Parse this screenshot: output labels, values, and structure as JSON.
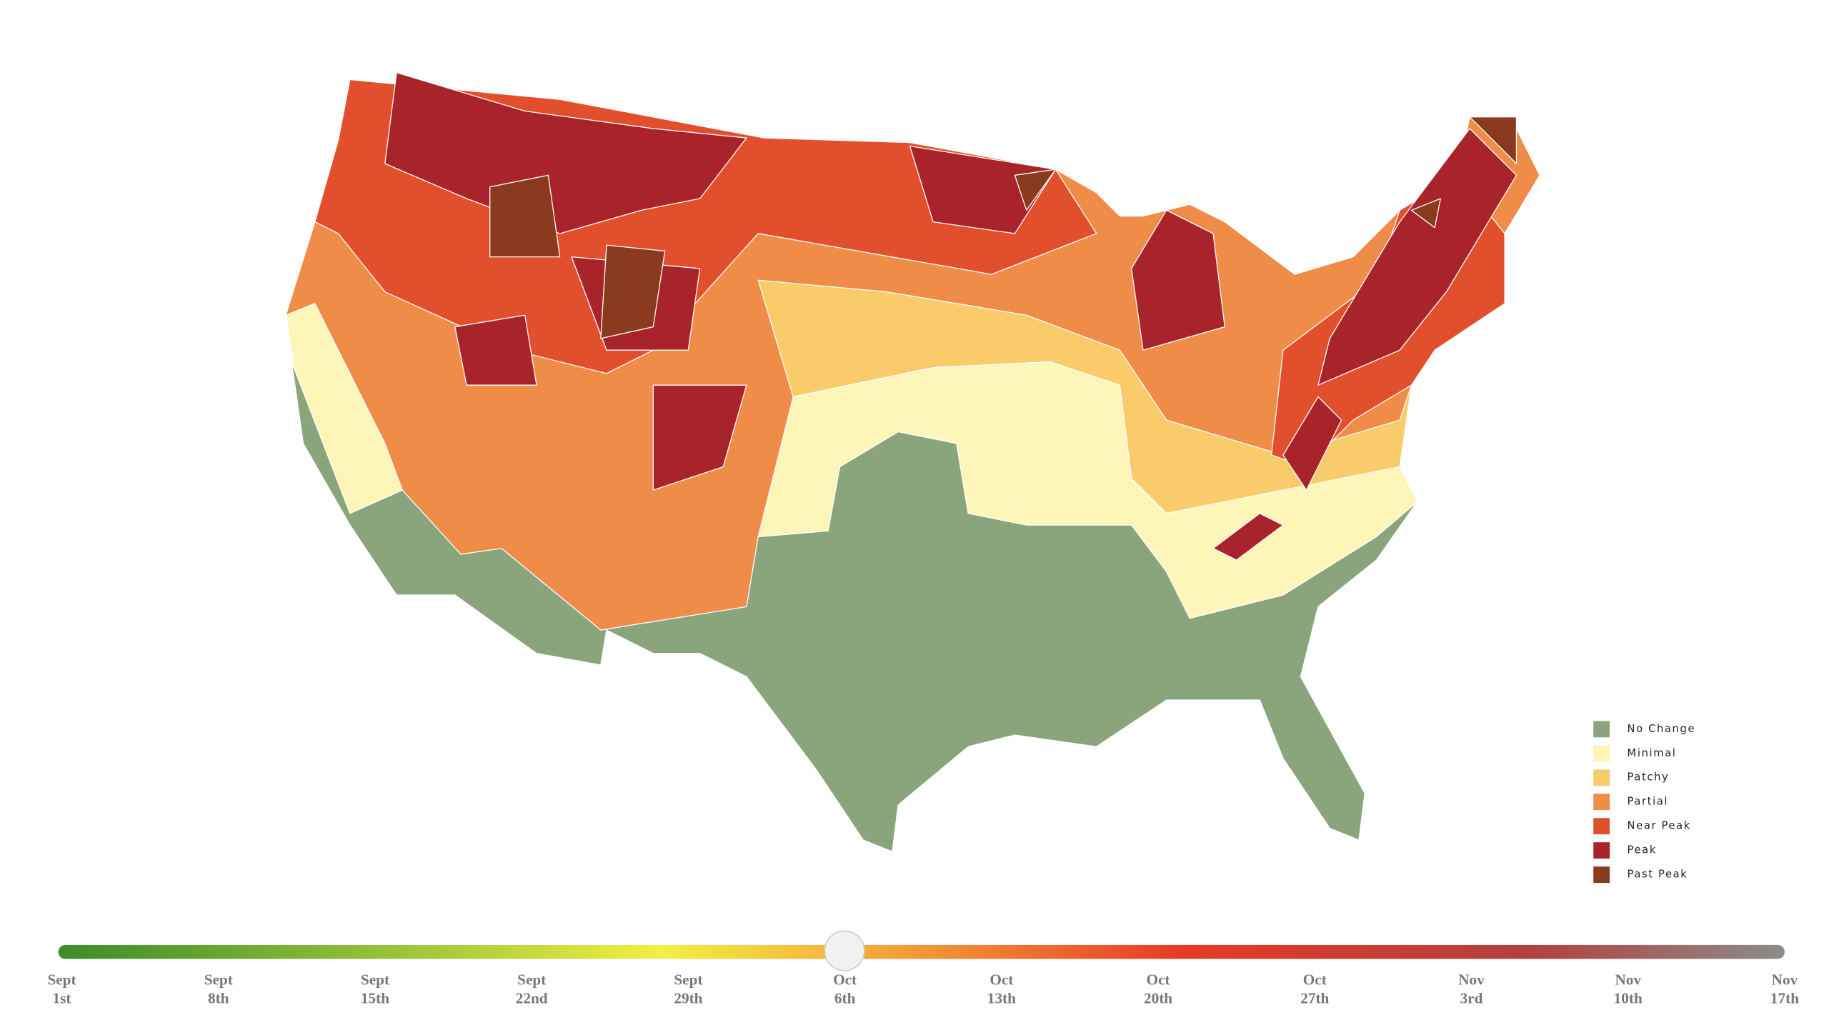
{
  "legend": {
    "items": [
      {
        "label": "No Change",
        "color": "#8aa57c"
      },
      {
        "label": "Minimal",
        "color": "#fdf6b8"
      },
      {
        "label": "Patchy",
        "color": "#f9cb6b"
      },
      {
        "label": "Partial",
        "color": "#ee8c48"
      },
      {
        "label": "Near Peak",
        "color": "#e24f2c"
      },
      {
        "label": "Peak",
        "color": "#a8232a"
      },
      {
        "label": "Past Peak",
        "color": "#8a3a1e"
      }
    ]
  },
  "timeline": {
    "ticks": [
      {
        "month": "Sept",
        "day": "1st"
      },
      {
        "month": "Sept",
        "day": "8th"
      },
      {
        "month": "Sept",
        "day": "15th"
      },
      {
        "month": "Sept",
        "day": "22nd"
      },
      {
        "month": "Sept",
        "day": "29th"
      },
      {
        "month": "Oct",
        "day": "6th"
      },
      {
        "month": "Oct",
        "day": "13th"
      },
      {
        "month": "Oct",
        "day": "20th"
      },
      {
        "month": "Oct",
        "day": "27th"
      },
      {
        "month": "Nov",
        "day": "3rd"
      },
      {
        "month": "Nov",
        "day": "10th"
      },
      {
        "month": "Nov",
        "day": "17th"
      }
    ]
  }
}
